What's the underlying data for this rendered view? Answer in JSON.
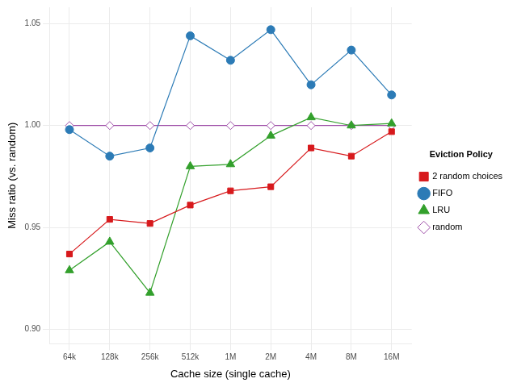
{
  "chart_data": {
    "type": "line",
    "x_label": "Cache size (single cache)",
    "y_label": "Miss ratio (vs. random)",
    "categories": [
      "64k",
      "128k",
      "256k",
      "512k",
      "1M",
      "2M",
      "4M",
      "8M",
      "16M"
    ],
    "legend_title": "Eviction Policy",
    "legend": "right",
    "grid": true,
    "ylim": [
      0.893,
      1.058
    ],
    "yticks": [
      {
        "value": 0.9,
        "label": "0.90"
      },
      {
        "value": 0.95,
        "label": "0.95"
      },
      {
        "value": 1.0,
        "label": "1.00"
      },
      {
        "value": 1.05,
        "label": "1.05"
      }
    ],
    "series": [
      {
        "name": "2 random choices",
        "color": "#d7191c",
        "marker": "square",
        "values": [
          0.937,
          0.954,
          0.952,
          0.961,
          0.968,
          0.97,
          0.989,
          0.985,
          0.997
        ]
      },
      {
        "name": "FIFO",
        "color": "#2c7bb6",
        "marker": "circle",
        "values": [
          0.998,
          0.985,
          0.989,
          1.044,
          1.032,
          1.047,
          1.02,
          1.037,
          1.015
        ]
      },
      {
        "name": "LRU",
        "color": "#33a02c",
        "marker": "triangle",
        "values": [
          0.929,
          0.943,
          0.918,
          0.98,
          0.981,
          0.995,
          1.004,
          1.0,
          1.001
        ]
      },
      {
        "name": "random",
        "color": "#9e4fa8",
        "marker": "diamond",
        "values": [
          1.0,
          1.0,
          1.0,
          1.0,
          1.0,
          1.0,
          1.0,
          1.0,
          1.0
        ]
      }
    ]
  }
}
